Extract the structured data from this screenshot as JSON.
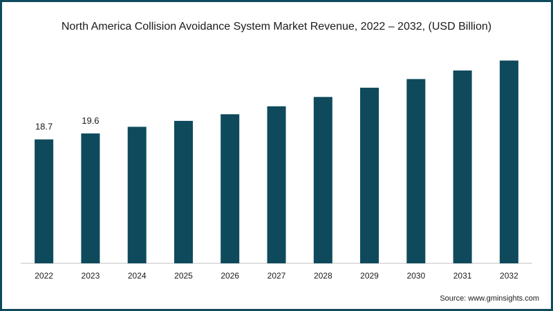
{
  "chart_data": {
    "type": "bar",
    "title": "North America Collision Avoidance System Market Revenue, 2022 – 2032, (USD Billion)",
    "xlabel": "",
    "ylabel": "",
    "categories": [
      "2022",
      "2023",
      "2024",
      "2025",
      "2026",
      "2027",
      "2028",
      "2029",
      "2030",
      "2031",
      "2032"
    ],
    "values": [
      18.7,
      19.6,
      20.6,
      21.5,
      22.5,
      23.7,
      25.1,
      26.5,
      27.8,
      29.1,
      30.6
    ],
    "data_labels": [
      "18.7",
      "19.6",
      "",
      "",
      "",
      "",
      "",
      "",
      "",
      "",
      ""
    ],
    "ylim": [
      0,
      34
    ],
    "grid": false,
    "legend": "none",
    "colors": {
      "bar": "#0e4a5c",
      "frame": "#0e4a5c",
      "axis": "#bfbfbf"
    }
  },
  "source_text": "Source: www.gminsights.com"
}
